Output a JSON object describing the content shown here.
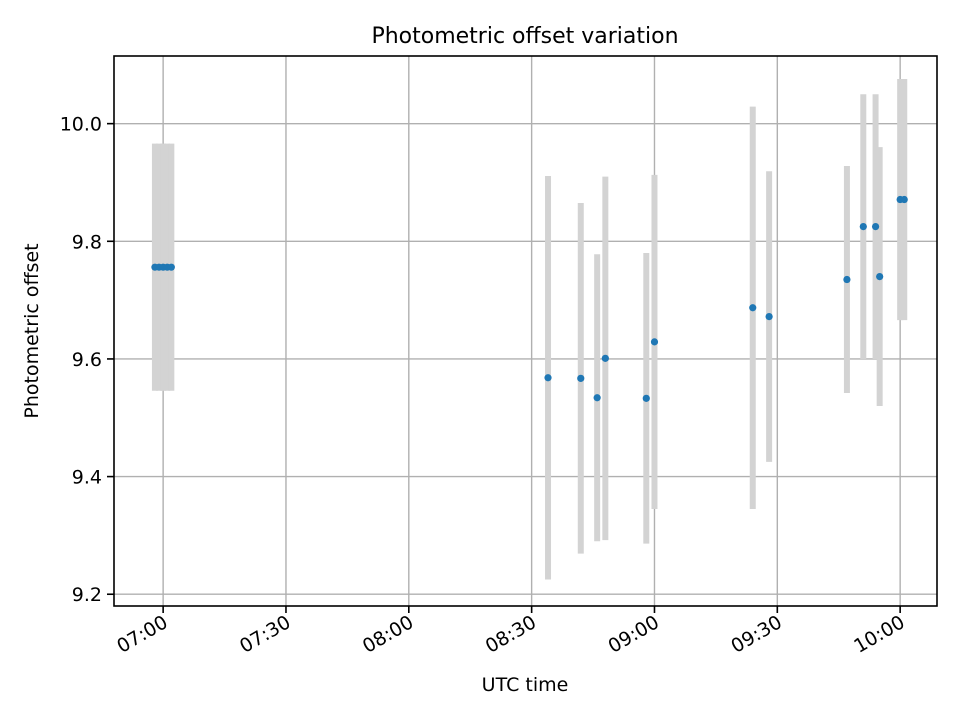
{
  "chart_data": {
    "type": "scatter",
    "title": "Photometric offset variation",
    "xlabel": "UTC time",
    "ylabel": "Photometric offset",
    "x_axis_kind": "time",
    "xlim": [
      "06:48",
      "10:09"
    ],
    "ylim": [
      9.18,
      10.115
    ],
    "yticks": [
      9.2,
      9.4,
      9.6,
      9.8,
      10.0
    ],
    "ytick_labels": [
      "9.2",
      "9.4",
      "9.6",
      "9.8",
      "10.0"
    ],
    "xticks": [
      "07:00",
      "07:30",
      "08:00",
      "08:30",
      "09:00",
      "09:30",
      "10:00"
    ],
    "grid": true,
    "marker_color": "#1f77b4",
    "errorbar_color": "#d3d3d3",
    "points": [
      {
        "x": "06:58",
        "y": 9.756,
        "yerr": 0.21
      },
      {
        "x": "06:59",
        "y": 9.756,
        "yerr": 0.21
      },
      {
        "x": "07:00",
        "y": 9.756,
        "yerr": 0.21
      },
      {
        "x": "07:01",
        "y": 9.756,
        "yerr": 0.21
      },
      {
        "x": "07:02",
        "y": 9.756,
        "yerr": 0.21
      },
      {
        "x": "08:34",
        "y": 9.568,
        "yerr": 0.343
      },
      {
        "x": "08:42",
        "y": 9.567,
        "yerr": 0.298
      },
      {
        "x": "08:46",
        "y": 9.534,
        "yerr": 0.244
      },
      {
        "x": "08:48",
        "y": 9.601,
        "yerr": 0.309
      },
      {
        "x": "08:58",
        "y": 9.533,
        "yerr": 0.247
      },
      {
        "x": "09:00",
        "y": 9.629,
        "yerr": 0.284
      },
      {
        "x": "09:24",
        "y": 9.687,
        "yerr": 0.342
      },
      {
        "x": "09:28",
        "y": 9.672,
        "yerr": 0.247
      },
      {
        "x": "09:47",
        "y": 9.735,
        "yerr": 0.193
      },
      {
        "x": "09:51",
        "y": 9.825,
        "yerr": 0.225
      },
      {
        "x": "09:54",
        "y": 9.825,
        "yerr": 0.225
      },
      {
        "x": "09:55",
        "y": 9.74,
        "yerr": 0.22
      },
      {
        "x": "10:00",
        "y": 9.871,
        "yerr": 0.205
      },
      {
        "x": "10:01",
        "y": 9.871,
        "yerr": 0.205
      }
    ]
  }
}
